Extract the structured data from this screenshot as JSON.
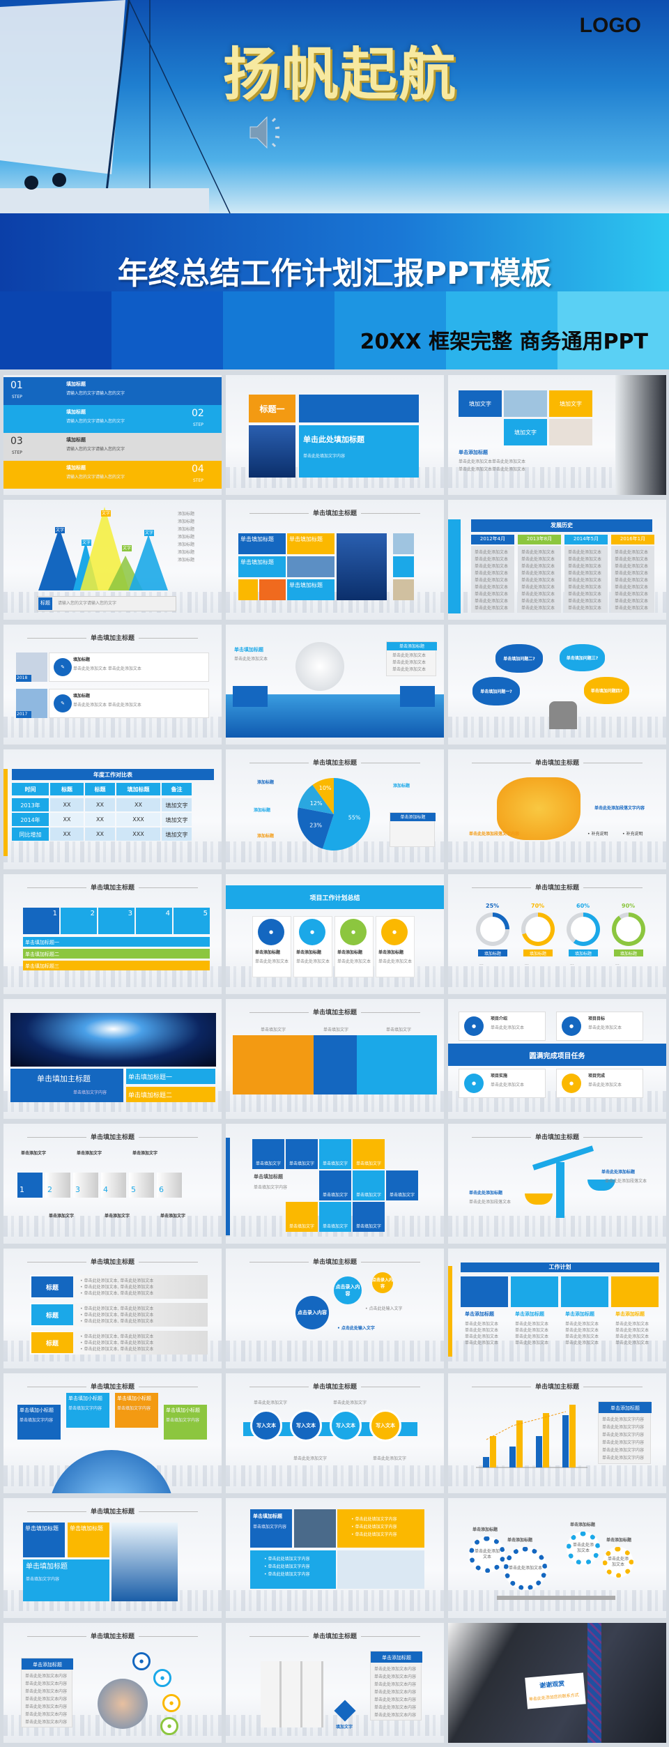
{
  "colors": {
    "dark_blue": "#1467c0",
    "light_blue": "#1ba8e8",
    "yellow": "#fbb800",
    "green": "#8cc63f",
    "orange": "#f39a12",
    "gray": "#cfd4da"
  },
  "hero": {
    "logo": "LOGO",
    "title": "扬帆起航",
    "subtitle": "年终总结工作计划汇报PPT模板",
    "tagline": "20XX 框架完整 商务通用PPT",
    "icon": "speaker-icon"
  },
  "slides": [
    {
      "kind": "steps",
      "items": [
        {
          "num": "01",
          "step": "STEP",
          "title": "填加标题",
          "text": "请输入您的文字请输入您的文字"
        },
        {
          "num": "02",
          "step": "STEP",
          "title": "填加标题",
          "text": "请输入您的文字请输入您的文字"
        },
        {
          "num": "03",
          "step": "STEP",
          "title": "填加标题",
          "text": "请输入您的文字请输入您的文字"
        },
        {
          "num": "04",
          "step": "STEP",
          "title": "填加标题",
          "text": "请输入您的文字请输入您的文字"
        }
      ]
    },
    {
      "kind": "titleone",
      "label": "标题一",
      "heading": "单击此处填加标题",
      "text": "单击此处填加文字内容"
    },
    {
      "kind": "tiles3",
      "tiles": [
        "填加文字",
        "填加文字",
        "填加文字"
      ],
      "heading": "单击添加标题",
      "text": "单击此处添加文本单击此处添加文本"
    },
    {
      "kind": "triangles",
      "tags": [
        "文字",
        "文字",
        "文字",
        "文字",
        "文字"
      ],
      "label": "标题",
      "text": "请输入您的文字请输入您的文字",
      "side": [
        "添加标题",
        "添加标题",
        "添加标题",
        "添加标题",
        "添加标题",
        "添加标题",
        "添加标题"
      ]
    },
    {
      "kind": "mosaic",
      "title": "单击填加主标题",
      "tiles": [
        "单击填加标题",
        "单击填加标题",
        "单击填加标题",
        "单击填加标题"
      ],
      "text": "单击填加文字内容"
    },
    {
      "kind": "history",
      "heading": "发展历史",
      "dates": [
        "2012年4月",
        "2013年8月",
        "2014年5月",
        "2016年1月"
      ],
      "text": "单击此处添加文本"
    },
    {
      "kind": "years",
      "title": "单击填加主标题",
      "items": [
        {
          "year": "2018",
          "title": "填加标题",
          "text": "单击此处添加文本 单击此处添加文本"
        },
        {
          "year": "2017",
          "title": "填加标题",
          "text": "单击此处添加文本 单击此处添加文本"
        }
      ]
    },
    {
      "kind": "stage",
      "heading": "单击填加标题",
      "box": "单击添加标题",
      "text": "单击此处添加文本"
    },
    {
      "kind": "clouds",
      "items": [
        "单击填加问题一?",
        "单击填加问题二?",
        "单击填加问题三?",
        "单击填加问题四?"
      ]
    },
    {
      "kind": "table",
      "heading": "年度工作对比表",
      "headers": [
        "时间",
        "标题",
        "标题",
        "填加标题",
        "备注"
      ],
      "rows": [
        [
          "2013年",
          "XX",
          "XX",
          "XX",
          "填加文字"
        ],
        [
          "2014年",
          "XX",
          "XX",
          "XXX",
          "填加文字"
        ],
        [
          "同比增加",
          "XX",
          "XX",
          "XXX",
          "填加文字"
        ]
      ]
    },
    {
      "kind": "pie",
      "title": "单击填加主标题",
      "values": [
        55,
        23,
        12,
        10
      ],
      "labels": [
        "55%",
        "23%",
        "12%",
        "10%"
      ],
      "tags": [
        "添加标题",
        "添加标题",
        "添加标题",
        "添加标题"
      ],
      "box": "单击添加标题"
    },
    {
      "kind": "map",
      "title": "单击填加主标题",
      "caption": "单击此处添加段落文字内容",
      "notes": [
        "补充说明",
        "补充说明"
      ]
    },
    {
      "kind": "icons5",
      "title": "单击填加主标题",
      "nums": [
        "1",
        "2",
        "3",
        "4",
        "5"
      ],
      "bars": [
        "单击填加标题一",
        "单击填加标题二",
        "单击填加标题三"
      ]
    },
    {
      "kind": "plan4",
      "heading": "项目工作计划总结",
      "items": [
        "单击添加标题",
        "单击添加标题",
        "单击添加标题",
        "单击添加标题"
      ],
      "text": "单击此处添加文本"
    },
    {
      "kind": "rings",
      "title": "单击填加主标题",
      "pcts": [
        "25%",
        "70%",
        "60%",
        "90%"
      ],
      "values": [
        25,
        70,
        60,
        90
      ],
      "labels": [
        "填加标题",
        "填加标题",
        "填加标题",
        "填加标题"
      ]
    },
    {
      "kind": "earth",
      "main": "单击填加主标题",
      "sub": "单击填加文字内容",
      "t1": "单击填加标题一",
      "t2": "单击填加标题二"
    },
    {
      "kind": "world",
      "title": "单击填加主标题",
      "cols": [
        "单击填加文字",
        "单击填加文字",
        "单击填加文字"
      ]
    },
    {
      "kind": "project",
      "band": "圆满完成项目任务",
      "items": [
        "项目介绍",
        "项目目标",
        "项目实施",
        "项目完成"
      ],
      "text": "单击此处添加文本"
    },
    {
      "kind": "cubes",
      "title": "单击填加主标题",
      "nums": [
        "1",
        "2",
        "3",
        "4",
        "5",
        "6"
      ],
      "label": "单击添加文字",
      "text": "单击此处添加文字"
    },
    {
      "kind": "iconsgrid",
      "heading": "单击填加标题",
      "text": "单击填加文字内容",
      "cell": "单击填加文字"
    },
    {
      "kind": "scale",
      "title": "单击填加主标题",
      "left": "单击此处添加标题",
      "right": "单击此处添加标题",
      "text": "单击此处添加段落文本"
    },
    {
      "kind": "list3",
      "title": "单击填加主标题",
      "labels": [
        "标题",
        "标题",
        "标题"
      ],
      "text": "单击此处添加文本, 单击此处添加文本"
    },
    {
      "kind": "pins",
      "title": "单击填加主标题",
      "pins": [
        "点击录入内容",
        "点击录入内容",
        "点击录入内容"
      ],
      "text": "点击此处输入文字"
    },
    {
      "kind": "workplan",
      "heading": "工作计划",
      "items": [
        "单击添加标题",
        "单击添加标题",
        "单击添加标题",
        "单击添加标题"
      ],
      "text": "单击此处添加文本"
    },
    {
      "kind": "globe",
      "title": "单击填加主标题",
      "boxes": [
        "单击填加小标题",
        "单击填加小标题",
        "单击填加小标题",
        "单击填加小标题"
      ],
      "text": "单击填加文字内容"
    },
    {
      "kind": "arrow",
      "title": "单击填加主标题",
      "circles": [
        "写入文本",
        "写入文本",
        "写入文本",
        "写入文本"
      ],
      "text": "单击此处添加文字"
    },
    {
      "kind": "bars",
      "title": "单击填加主标题",
      "box": "单击添加标题",
      "text": "单击此处添加文字内容",
      "series_a": [
        10,
        20,
        30,
        50
      ],
      "series_b": [
        30,
        45,
        52,
        60
      ],
      "line": [
        20,
        30,
        35,
        40
      ]
    },
    {
      "kind": "photo",
      "title": "单击填加主标题",
      "t1": "单击填加标题",
      "t2": "单击填加标题",
      "big": "单击填加标题",
      "text": "单击填加文字内容"
    },
    {
      "kind": "binoc",
      "heading": "单击填加标题",
      "text": "单击填加文字内容",
      "bullets": [
        "单击此处填加文字内容",
        "单击此处填加文字内容",
        "单击此处填加文字内容"
      ]
    },
    {
      "kind": "gears",
      "labels": [
        "单击添加标题",
        "单击添加标题",
        "单击添加标题",
        "单击添加标题"
      ],
      "texts": [
        "单击此处添加文本",
        "单击此处添加文本",
        "单击此处添加文本",
        "单击此处添加文本"
      ]
    },
    {
      "kind": "handshake",
      "title": "单击填加主标题",
      "box": "单击添加标题",
      "text": "单击此处添加文本内容"
    },
    {
      "kind": "rubik",
      "title": "单击填加主标题",
      "box": "单击添加标题",
      "label": "填加文字",
      "text": "单击此处添加文本内容"
    },
    {
      "kind": "thanks",
      "card": "谢谢观赏",
      "sub": "单击此处添加您的联系方式"
    }
  ]
}
